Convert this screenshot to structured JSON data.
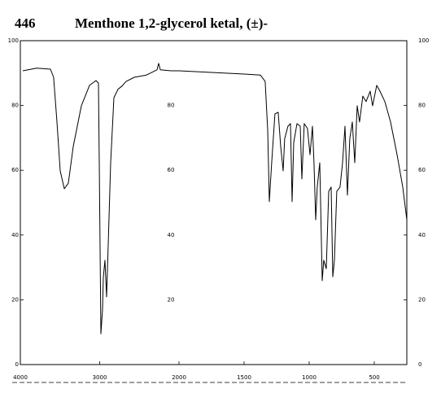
{
  "chart_data": {
    "type": "line",
    "title": "Menthone 1,2-glycerol ketal, (±)-",
    "subtitle": "446",
    "xlim": [
      4000,
      250
    ],
    "x_scale_change": 2000,
    "xticks": [
      4000,
      3000,
      2000,
      1500,
      1000,
      500
    ],
    "ylim": [
      0,
      100
    ],
    "yticks": [
      0,
      20,
      40,
      60,
      80,
      100
    ],
    "color": "#000000",
    "x": [
      3969,
      3795,
      3621,
      3580,
      3538,
      3497,
      3446,
      3395,
      3333,
      3231,
      3128,
      3046,
      3015,
      3005,
      2985,
      2964,
      2954,
      2933,
      2913,
      2892,
      2862,
      2821,
      2769,
      2718,
      2667,
      2564,
      2410,
      2277,
      2256,
      2236,
      2103,
      2000,
      1750,
      1500,
      1375,
      1338,
      1319,
      1306,
      1288,
      1263,
      1238,
      1219,
      1200,
      1188,
      1163,
      1144,
      1131,
      1119,
      1094,
      1069,
      1056,
      1038,
      1013,
      994,
      975,
      963,
      950,
      938,
      919,
      900,
      888,
      869,
      850,
      831,
      819,
      806,
      788,
      763,
      744,
      725,
      706,
      688,
      669,
      650,
      631,
      613,
      588,
      563,
      531,
      513,
      481,
      456,
      419,
      375,
      325,
      281,
      250
    ],
    "values": [
      90.7,
      91.5,
      91.2,
      88.7,
      74.9,
      59.8,
      54.3,
      56,
      67.3,
      79.9,
      86.2,
      87.7,
      86.9,
      62.3,
      9.5,
      17,
      27,
      32.2,
      20.9,
      37,
      62.3,
      82.4,
      85,
      86,
      87.4,
      88.7,
      89.4,
      91,
      93,
      91,
      90.7,
      90.7,
      90.2,
      89.7,
      89.4,
      87.4,
      72.4,
      50.3,
      62.3,
      77.4,
      77.9,
      67.3,
      59.8,
      69.8,
      73.6,
      74.4,
      50.3,
      68.6,
      74.4,
      73.6,
      57.3,
      74.4,
      72.9,
      64.8,
      73.6,
      62.3,
      44.7,
      54.8,
      62.3,
      25.9,
      32.2,
      29.6,
      53.5,
      54.8,
      27.1,
      32.2,
      53.5,
      54.8,
      62.3,
      73.6,
      52.3,
      69.8,
      74.9,
      62.3,
      79.9,
      74.9,
      82.9,
      81.2,
      84.4,
      79.9,
      86.2,
      84.4,
      81.2,
      74.9,
      64.8,
      54.8,
      44.7
    ]
  }
}
